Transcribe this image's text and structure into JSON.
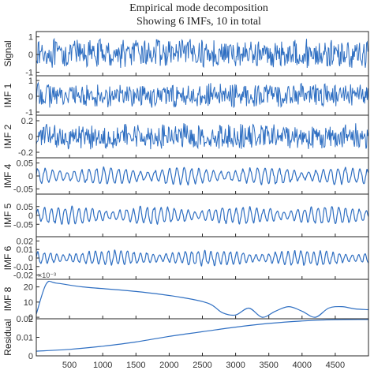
{
  "chart_data": {
    "type": "line",
    "title": [
      "Empirical mode decomposition",
      "Showing 6 IMFs,  10 in total"
    ],
    "xlim": [
      0,
      5000
    ],
    "xticks": [
      500,
      1000,
      1500,
      2000,
      2500,
      3000,
      3500,
      4000,
      4500
    ],
    "line_color": "#2f6fc2",
    "panels": [
      {
        "label": "Signal",
        "ylim": [
          -1.2,
          1.3
        ],
        "yticks": [
          1,
          0,
          -1
        ],
        "ytick_labels": [
          "1",
          "0",
          "-1"
        ],
        "kind": "noise",
        "amp": 0.85
      },
      {
        "label": "IMF 1",
        "ylim": [
          -1.2,
          1.3
        ],
        "yticks": [
          1,
          0,
          -1
        ],
        "ytick_labels": [
          "1",
          "0",
          "-1"
        ],
        "kind": "noise",
        "amp": 0.8
      },
      {
        "label": "IMF 2",
        "ylim": [
          -0.27,
          0.27
        ],
        "yticks": [
          0.2,
          0,
          -0.2
        ],
        "ytick_labels": [
          "0.2",
          "0",
          "-0.2"
        ],
        "kind": "noise",
        "amp": 0.17
      },
      {
        "label": "IMF 4",
        "ylim": [
          -0.07,
          0.07
        ],
        "yticks": [
          0.05,
          0,
          -0.05
        ],
        "ytick_labels": [
          "0.05",
          "0",
          "-0.05"
        ],
        "kind": "osc",
        "amp": 0.03
      },
      {
        "label": "IMF 5",
        "ylim": [
          -0.12,
          0.12
        ],
        "yticks": [
          0.05,
          0,
          -0.05
        ],
        "ytick_labels": [
          "0.05",
          "0",
          "-0.05"
        ],
        "kind": "osc",
        "amp": 0.045
      },
      {
        "label": "IMF 6",
        "ylim": [
          -0.025,
          0.025
        ],
        "yticks": [
          0.02,
          0.01,
          0,
          -0.01,
          -0.02
        ],
        "ytick_labels": [
          "0.02",
          "0.01",
          "0",
          "-0.01",
          "-0.02"
        ],
        "kind": "osc",
        "amp": 0.008
      },
      {
        "label": "IMF 8",
        "ylim": [
          -1,
          25
        ],
        "yticks": [
          20,
          10,
          0
        ],
        "ytick_labels": [
          "20",
          "10",
          "0"
        ],
        "exponent": "×10⁻³",
        "kind": "points",
        "points": [
          [
            0,
            2
          ],
          [
            150,
            22
          ],
          [
            300,
            22.5
          ],
          [
            700,
            20
          ],
          [
            1500,
            17
          ],
          [
            2200,
            13
          ],
          [
            2600,
            9
          ],
          [
            2800,
            3
          ],
          [
            3000,
            1.5
          ],
          [
            3200,
            6
          ],
          [
            3400,
            0
          ],
          [
            3600,
            4
          ],
          [
            3800,
            7
          ],
          [
            4000,
            4
          ],
          [
            4200,
            0
          ],
          [
            4400,
            6
          ],
          [
            4600,
            7
          ],
          [
            4800,
            5.5
          ],
          [
            5000,
            5
          ]
        ]
      },
      {
        "label": "Residual",
        "ylim": [
          0,
          0.02
        ],
        "yticks": [
          0.02,
          0.01,
          0
        ],
        "ytick_labels": [
          "0.02",
          "0.01",
          "0"
        ],
        "kind": "points",
        "points": [
          [
            0,
            0.0025
          ],
          [
            500,
            0.0035
          ],
          [
            1000,
            0.0052
          ],
          [
            1500,
            0.0075
          ],
          [
            2000,
            0.0105
          ],
          [
            2500,
            0.013
          ],
          [
            3000,
            0.0155
          ],
          [
            3500,
            0.0175
          ],
          [
            4000,
            0.0188
          ],
          [
            4500,
            0.0195
          ],
          [
            5000,
            0.0196
          ]
        ]
      }
    ]
  }
}
